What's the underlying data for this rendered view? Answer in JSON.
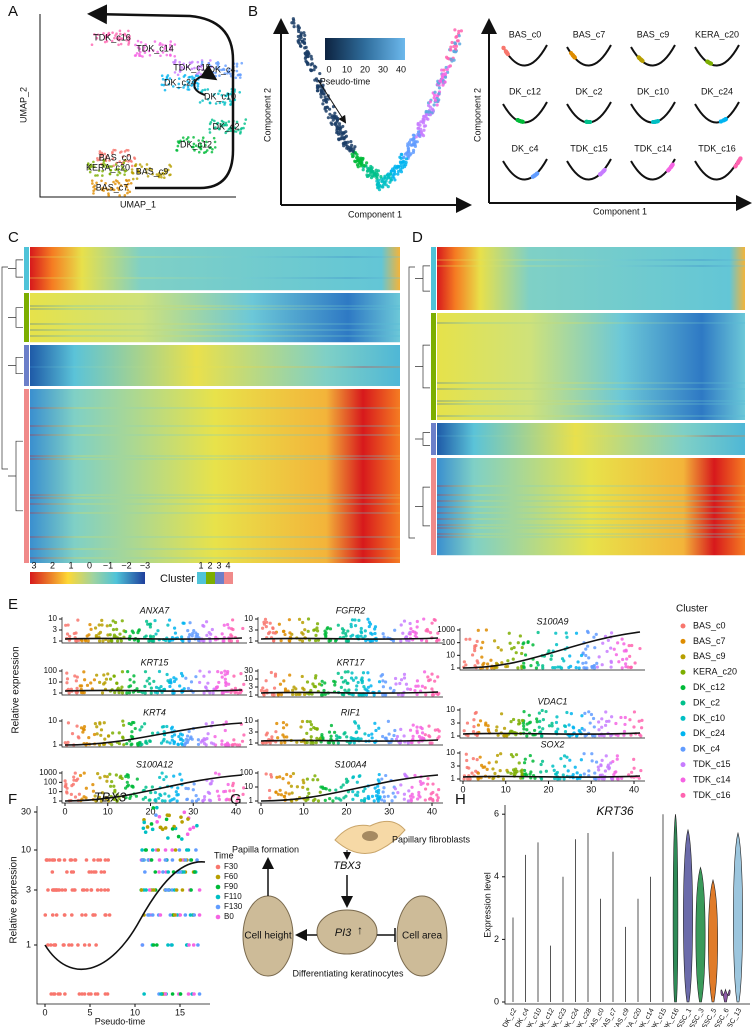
{
  "panels": {
    "A": {
      "letter": "A",
      "xlabel": "UMAP_1",
      "ylabel": "UMAP_2",
      "clusters": [
        "TDK_c16",
        "TDK_c14",
        "TDK_c15",
        "DK_c4",
        "DK_c24",
        "DK_c10",
        "DK_c2",
        "DK_c12",
        "BAS_c0",
        "KERA_c20",
        "BAS_c9",
        "BAS_c7"
      ]
    },
    "B": {
      "letter": "B",
      "xlabel": "Component 1",
      "ylabel": "Component 2",
      "colorbar_title": "Pseudo-time",
      "colorbar_ticks": [
        0,
        10,
        20,
        30,
        40
      ],
      "small_xlabel": "Component 1",
      "small_ylabel": "Component 2",
      "small_titles": [
        "BAS_c0",
        "BAS_c7",
        "BAS_c9",
        "KERA_c20",
        "DK_c12",
        "DK_c2",
        "DK_c10",
        "DK_c24",
        "DK_c4",
        "TDK_c15",
        "TDK_c14",
        "TDK_c16"
      ]
    },
    "C": {
      "letter": "C"
    },
    "D": {
      "letter": "D"
    },
    "heat_legend": {
      "ticks": [
        "3",
        "2",
        "1",
        "0",
        "−1",
        "−2",
        "−3"
      ],
      "cluster_title": "Cluster",
      "clusters": [
        "1",
        "2",
        "3",
        "4"
      ]
    },
    "E": {
      "letter": "E",
      "ylabel": "Relative expression",
      "xticks": [
        0,
        10,
        20,
        30,
        40
      ],
      "genes": [
        {
          "name": "ANXA7",
          "yticks": [
            1,
            3,
            10
          ]
        },
        {
          "name": "KRT15",
          "yticks": [
            1,
            10,
            100
          ]
        },
        {
          "name": "KRT4",
          "yticks": [
            1,
            10
          ]
        },
        {
          "name": "S100A12",
          "yticks": [
            1,
            10,
            100,
            1000
          ]
        },
        {
          "name": "FGFR2",
          "yticks": [
            1,
            3,
            10
          ]
        },
        {
          "name": "KRT17",
          "yticks": [
            1,
            3,
            10,
            30
          ]
        },
        {
          "name": "RIF1",
          "yticks": [
            1,
            3,
            10
          ]
        },
        {
          "name": "S100A4",
          "yticks": [
            1,
            10,
            100
          ]
        },
        {
          "name": "S100A9",
          "yticks": [
            1,
            10,
            100,
            1000
          ]
        },
        {
          "name": "VDAC1",
          "yticks": [
            1,
            3,
            10
          ]
        },
        {
          "name": "SOX2",
          "yticks": [
            1,
            3,
            10
          ]
        }
      ],
      "legend_title": "Cluster",
      "legend": [
        {
          "name": "BAS_c0",
          "color": "#f8766d"
        },
        {
          "name": "BAS_c7",
          "color": "#de8c00"
        },
        {
          "name": "BAS_c9",
          "color": "#b79f00"
        },
        {
          "name": "KERA_c20",
          "color": "#7cae00"
        },
        {
          "name": "DK_c12",
          "color": "#00ba38"
        },
        {
          "name": "DK_c2",
          "color": "#00c08b"
        },
        {
          "name": "DK_c10",
          "color": "#00bfc4"
        },
        {
          "name": "DK_c24",
          "color": "#00b4f0"
        },
        {
          "name": "DK_c4",
          "color": "#619cff"
        },
        {
          "name": "TDK_c15",
          "color": "#c77cff"
        },
        {
          "name": "TDK_c14",
          "color": "#f564e3"
        },
        {
          "name": "TDK_c16",
          "color": "#ff64b0"
        }
      ]
    },
    "F": {
      "letter": "F",
      "title": "TBX3",
      "ylabel": "Relative expression",
      "xlabel": "Pseudo-time",
      "xticks": [
        0,
        5,
        10,
        15
      ],
      "yticks": [
        1,
        3,
        10,
        30
      ],
      "legend_title": "Time",
      "legend": [
        {
          "name": "F30",
          "color": "#f8766d"
        },
        {
          "name": "F60",
          "color": "#b79f00"
        },
        {
          "name": "F90",
          "color": "#00ba38"
        },
        {
          "name": "F110",
          "color": "#00bfc4"
        },
        {
          "name": "F130",
          "color": "#619cff"
        },
        {
          "name": "B0",
          "color": "#f564e3"
        }
      ]
    },
    "G": {
      "letter": "G",
      "fibroblast": "Papillary fibroblasts",
      "gene": "TBX3",
      "target": "PI3",
      "target_arrow": "↑",
      "papilla": "Papilla formation",
      "height": "Cell height",
      "area": "Cell area",
      "keratinocytes": "Differentiating keratinocytes"
    },
    "H": {
      "letter": "H",
      "title": "KRT36",
      "ylabel": "Expression level",
      "yticks": [
        0,
        2,
        4,
        6
      ],
      "groups": [
        "DK_c2",
        "DK_c4",
        "DK_c10",
        "DK_c12",
        "DK_c23",
        "DK_c24",
        "DK_c28",
        "BAS_c0",
        "BAS_c7",
        "BAS_c9",
        "KERA_c20",
        "TDK_c14",
        "TDK_c15",
        "TDK_c16",
        "SSC_1",
        "SSC_3",
        "SSC_5",
        "SSC_6",
        "SSC_13"
      ],
      "max": [
        2.7,
        4.7,
        5.1,
        1.8,
        4.0,
        5.2,
        5.4,
        3.3,
        4.8,
        2.4,
        3.3,
        4.0,
        6.0,
        6.0,
        5.5,
        4.3,
        3.9,
        0.4,
        5.4
      ],
      "colors": [
        "#444",
        "#444",
        "#444",
        "#444",
        "#444",
        "#444",
        "#444",
        "#444",
        "#444",
        "#444",
        "#444",
        "#444",
        "#444",
        "#2e8b57",
        "#6b6baa",
        "#3a9a5a",
        "#e07b29",
        "#8e5aa8",
        "#9cc6de"
      ]
    }
  }
}
